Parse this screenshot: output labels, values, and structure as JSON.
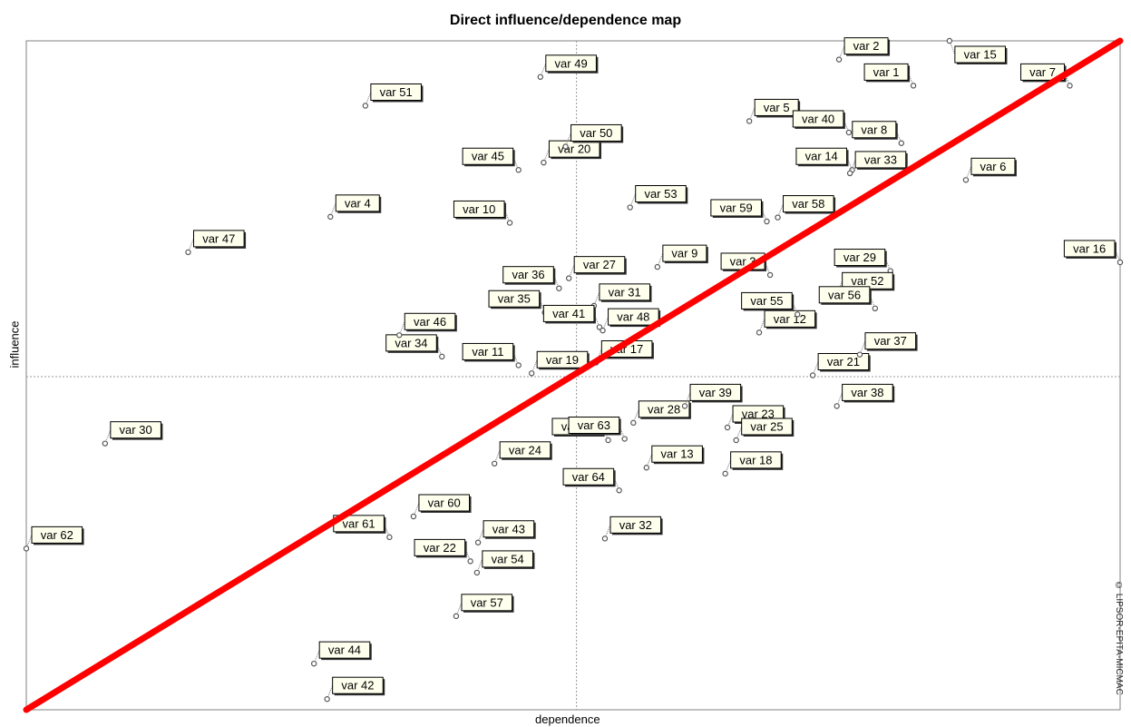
{
  "chart_data": {
    "type": "scatter",
    "title": "Direct influence/dependence map",
    "xlabel": "dependence",
    "ylabel": "influence",
    "watermark": "© LIPSOR-EPITA-MICMAC",
    "xlim": [
      0,
      100
    ],
    "ylim": [
      0,
      100
    ],
    "grid": false,
    "quadrant_lines_at": {
      "x": 50.3,
      "y": 49.8
    },
    "diagonal_line": {
      "from": [
        0,
        0
      ],
      "to": [
        100,
        100
      ],
      "color": "#ff0000"
    },
    "point_color": "#555555",
    "label_background": "#ffffee",
    "points": [
      {
        "label": "var 1",
        "x": 81.1,
        "y": 93.3,
        "label_side": "left"
      },
      {
        "label": "var 2",
        "x": 74.3,
        "y": 97.2,
        "label_side": "right"
      },
      {
        "label": "var 4",
        "x": 27.8,
        "y": 73.7,
        "label_side": "right"
      },
      {
        "label": "var 5",
        "x": 66.1,
        "y": 88.0,
        "label_side": "right"
      },
      {
        "label": "var 6",
        "x": 85.9,
        "y": 79.2,
        "label_side": "right"
      },
      {
        "label": "var 7",
        "x": 95.4,
        "y": 93.3,
        "label_side": "left"
      },
      {
        "label": "var 8",
        "x": 80.0,
        "y": 84.7,
        "label_side": "left"
      },
      {
        "label": "var 9",
        "x": 57.7,
        "y": 66.2,
        "label_side": "right"
      },
      {
        "label": "var 10",
        "x": 44.2,
        "y": 72.8,
        "label_side": "left"
      },
      {
        "label": "var 11",
        "x": 45.0,
        "y": 51.5,
        "label_side": "left"
      },
      {
        "label": "var 12",
        "x": 67.0,
        "y": 56.4,
        "label_side": "right"
      },
      {
        "label": "var 13",
        "x": 56.7,
        "y": 36.2,
        "label_side": "right"
      },
      {
        "label": "var 14",
        "x": 75.5,
        "y": 80.7,
        "label_side": "left"
      },
      {
        "label": "var 15",
        "x": 84.4,
        "y": 100.0,
        "label_side": "right"
      },
      {
        "label": "var 16",
        "x": 100.0,
        "y": 66.9,
        "label_side": "left"
      },
      {
        "label": "var 17",
        "x": 52.1,
        "y": 51.9,
        "label_side": "right"
      },
      {
        "label": "var 18",
        "x": 63.9,
        "y": 35.3,
        "label_side": "right"
      },
      {
        "label": "var 19",
        "x": 46.2,
        "y": 50.3,
        "label_side": "right"
      },
      {
        "label": "var 20",
        "x": 47.3,
        "y": 81.8,
        "label_side": "right"
      },
      {
        "label": "var 21",
        "x": 71.9,
        "y": 50.0,
        "label_side": "right"
      },
      {
        "label": "var 22",
        "x": 40.6,
        "y": 22.2,
        "label_side": "left"
      },
      {
        "label": "var 23",
        "x": 64.1,
        "y": 42.2,
        "label_side": "right"
      },
      {
        "label": "var 24",
        "x": 42.8,
        "y": 36.8,
        "label_side": "right"
      },
      {
        "label": "var 25",
        "x": 64.9,
        "y": 40.3,
        "label_side": "right"
      },
      {
        "label": "var 26",
        "x": 53.2,
        "y": 40.3,
        "label_side": "left"
      },
      {
        "label": "var 27",
        "x": 49.6,
        "y": 64.5,
        "label_side": "right"
      },
      {
        "label": "var 28",
        "x": 55.5,
        "y": 42.9,
        "label_side": "right"
      },
      {
        "label": "var 29",
        "x": 79.0,
        "y": 65.6,
        "label_side": "left"
      },
      {
        "label": "var 30",
        "x": 7.2,
        "y": 39.8,
        "label_side": "right"
      },
      {
        "label": "var 31",
        "x": 51.9,
        "y": 60.4,
        "label_side": "right"
      },
      {
        "label": "var 32",
        "x": 52.9,
        "y": 25.6,
        "label_side": "right"
      },
      {
        "label": "var 33",
        "x": 75.3,
        "y": 80.2,
        "label_side": "right"
      },
      {
        "label": "var 34",
        "x": 38.0,
        "y": 52.8,
        "label_side": "left"
      },
      {
        "label": "var 35",
        "x": 47.4,
        "y": 59.4,
        "label_side": "left"
      },
      {
        "label": "var 36",
        "x": 48.7,
        "y": 63.0,
        "label_side": "left"
      },
      {
        "label": "var 37",
        "x": 76.2,
        "y": 53.1,
        "label_side": "right"
      },
      {
        "label": "var 38",
        "x": 74.1,
        "y": 45.4,
        "label_side": "right"
      },
      {
        "label": "var 39",
        "x": 60.2,
        "y": 45.4,
        "label_side": "right"
      },
      {
        "label": "var 40",
        "x": 75.2,
        "y": 86.3,
        "label_side": "left"
      },
      {
        "label": "var 41",
        "x": 52.4,
        "y": 57.2,
        "label_side": "left"
      },
      {
        "label": "var 42",
        "x": 27.5,
        "y": 1.6,
        "label_side": "right"
      },
      {
        "label": "var 43",
        "x": 41.3,
        "y": 25.0,
        "label_side": "right"
      },
      {
        "label": "var 44",
        "x": 26.3,
        "y": 6.9,
        "label_side": "right"
      },
      {
        "label": "var 45",
        "x": 45.0,
        "y": 80.7,
        "label_side": "left"
      },
      {
        "label": "var 46",
        "x": 34.1,
        "y": 56.0,
        "label_side": "right"
      },
      {
        "label": "var 47",
        "x": 14.8,
        "y": 68.4,
        "label_side": "right"
      },
      {
        "label": "var 48",
        "x": 52.7,
        "y": 56.7,
        "label_side": "right"
      },
      {
        "label": "var 49",
        "x": 47.0,
        "y": 94.6,
        "label_side": "right"
      },
      {
        "label": "var 50",
        "x": 49.3,
        "y": 84.2,
        "label_side": "right"
      },
      {
        "label": "var 51",
        "x": 31.0,
        "y": 90.3,
        "label_side": "right"
      },
      {
        "label": "var 52",
        "x": 74.1,
        "y": 62.1,
        "label_side": "right"
      },
      {
        "label": "var 53",
        "x": 55.2,
        "y": 75.1,
        "label_side": "right"
      },
      {
        "label": "var 54",
        "x": 41.2,
        "y": 20.5,
        "label_side": "right"
      },
      {
        "label": "var 55",
        "x": 70.5,
        "y": 59.1,
        "label_side": "left"
      },
      {
        "label": "var 56",
        "x": 77.6,
        "y": 60.0,
        "label_side": "left"
      },
      {
        "label": "var 57",
        "x": 39.3,
        "y": 14.0,
        "label_side": "right"
      },
      {
        "label": "var 58",
        "x": 68.7,
        "y": 73.6,
        "label_side": "right"
      },
      {
        "label": "var 59",
        "x": 67.7,
        "y": 73.0,
        "label_side": "left"
      },
      {
        "label": "var 60",
        "x": 35.4,
        "y": 28.9,
        "label_side": "right"
      },
      {
        "label": "var 61",
        "x": 33.2,
        "y": 25.8,
        "label_side": "left"
      },
      {
        "label": "var 62",
        "x": 0.0,
        "y": 24.1,
        "label_side": "right"
      },
      {
        "label": "var 63",
        "x": 54.7,
        "y": 40.5,
        "label_side": "left"
      },
      {
        "label": "var 64",
        "x": 54.2,
        "y": 32.8,
        "label_side": "left"
      },
      {
        "label": "var 3",
        "x": 68.0,
        "y": 65.0,
        "label_side": "left"
      }
    ]
  }
}
